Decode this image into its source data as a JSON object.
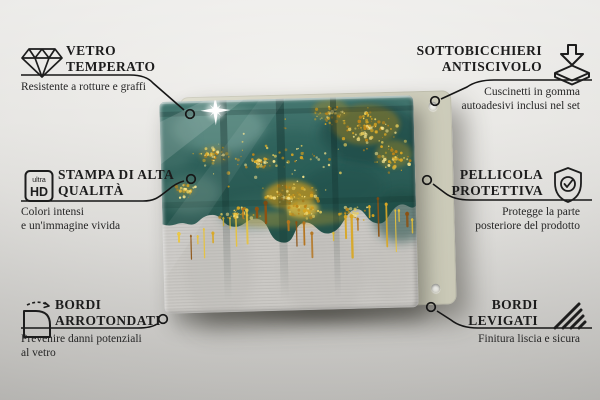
{
  "colors": {
    "line": "#161616",
    "text": "#1c1c1c",
    "gold": "#d4a226",
    "teal": "#2b5b55",
    "backing": "#d9d8c7",
    "concrete": "#c9c8c4"
  },
  "features": {
    "top_left": {
      "title1": "VETRO",
      "title2": "TEMPERATO",
      "desc1": "Resistente a rotture e graffi",
      "desc2": ""
    },
    "mid_left": {
      "title1": "STAMPA DI ALTA",
      "title2": "QUALITÀ",
      "desc1": "Colori intensi",
      "desc2": "e un'immagine vivida",
      "icon_top": "ultra",
      "icon_bottom": "HD"
    },
    "bottom_left": {
      "title1": "BORDI",
      "title2": "ARROTONDATI",
      "desc1": "Prevenire danni potenziali",
      "desc2": "al vetro"
    },
    "top_right": {
      "title1": "SOTTOBICCHIERI",
      "title2": "ANTISCIVOLO",
      "desc1": "Cuscinetti in gomma",
      "desc2": "autoadesivi inclusi nel set"
    },
    "mid_right": {
      "title1": "PELLICOLA",
      "title2": "PROTETTIVA",
      "desc1": "Protegge la parte",
      "desc2": "posteriore del prodotto"
    },
    "bottom_right": {
      "title1": "BORDI",
      "title2": "LEVIGATI",
      "desc1": "Finitura liscia e sicura",
      "desc2": ""
    }
  }
}
